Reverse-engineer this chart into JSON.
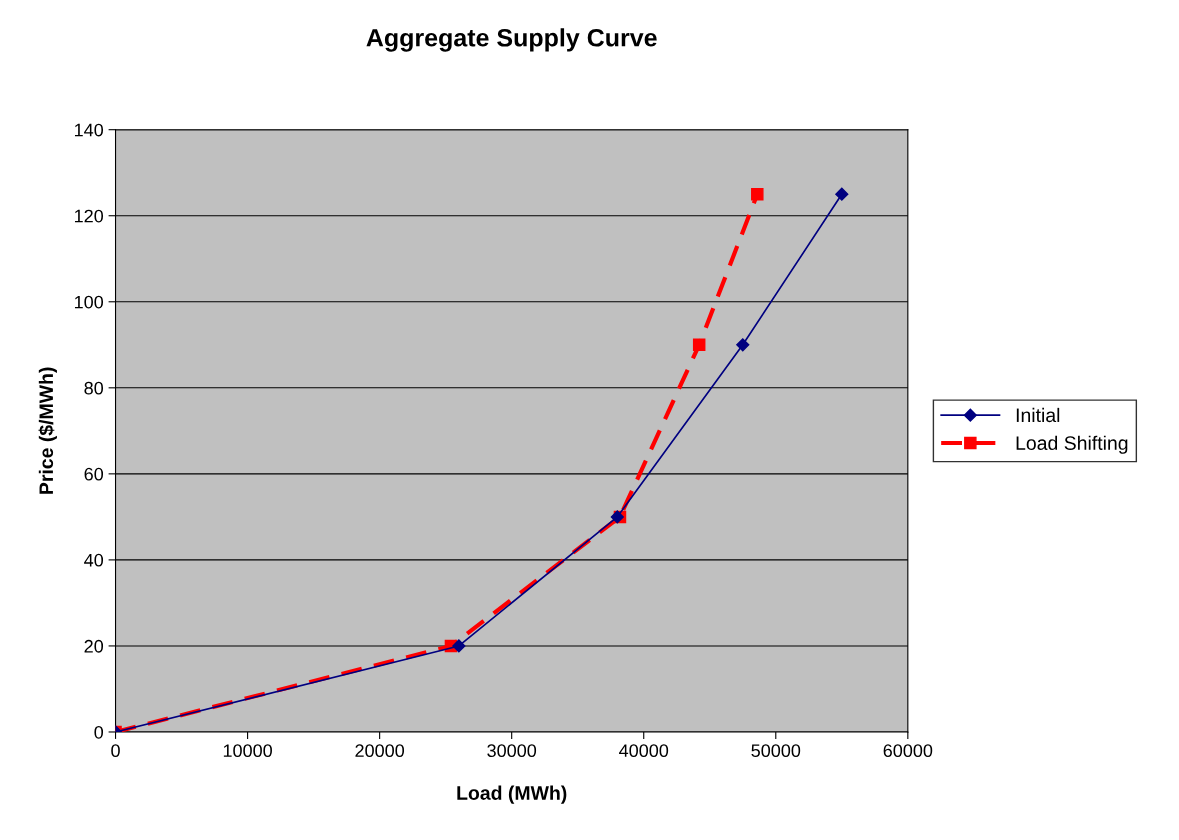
{
  "chart_data": {
    "type": "line",
    "title": "Aggregate Supply Curve",
    "xlabel": "Load (MWh)",
    "ylabel": "Price ($/MWh)",
    "series": [
      {
        "name": "Initial",
        "color": "#000080",
        "marker": "diamond",
        "line_style": "solid",
        "x": [
          0,
          26000,
          38000,
          47500,
          55000
        ],
        "values": [
          0,
          20,
          50,
          90,
          125
        ]
      },
      {
        "name": "Load Shifting",
        "color": "#ff0000",
        "marker": "square",
        "line_style": "dashed",
        "x": [
          0,
          25400,
          38200,
          44200,
          48600
        ],
        "values": [
          0,
          20,
          50,
          90,
          125
        ]
      }
    ],
    "xlim": [
      0,
      60000
    ],
    "xticks": [
      0,
      10000,
      20000,
      30000,
      40000,
      50000,
      60000
    ],
    "ylim": [
      0,
      140
    ],
    "yticks": [
      0,
      20,
      40,
      60,
      80,
      100,
      120,
      140
    ],
    "grid": "y",
    "legend": "right"
  }
}
